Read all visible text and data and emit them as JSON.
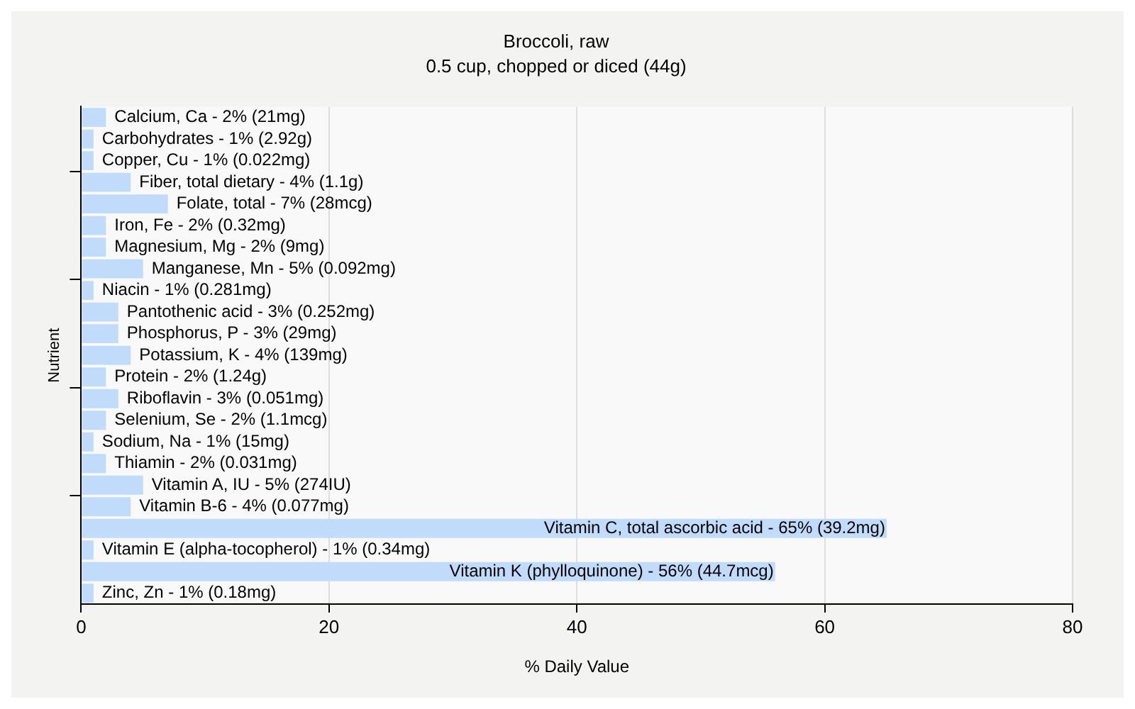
{
  "chart_data": {
    "type": "bar",
    "orientation": "horizontal",
    "title": "Broccoli, raw",
    "subtitle": "0.5 cup, chopped or diced (44g)",
    "xlabel": "% Daily Value",
    "ylabel": "Nutrient",
    "categories": [
      "Calcium, Ca -",
      "Carbohydrates -",
      "Copper, Cu -",
      "Fiber, total dietary -",
      "Folate, total -",
      "Iron, Fe -",
      "Magnesium, Mg -",
      "Manganese, Mn -",
      "Niacin -",
      "Pantothenic acid -",
      "Phosphorus, P -",
      "Potassium, K -",
      "Protein -",
      "Riboflavin -",
      "Selenium, Se -",
      "Sodium, Na -",
      "Thiamin -",
      "Vitamin A, IU -",
      "Vitamin B-6 -",
      "Vitamin C, total ascorbic acid -",
      "Vitamin E (alpha-tocopherol) -",
      "Vitamin K (phylloquinone) -",
      "Zinc, Zn -"
    ],
    "values": [
      2,
      1,
      1,
      4,
      7,
      2,
      2,
      5,
      1,
      3,
      3,
      4,
      2,
      3,
      2,
      1,
      2,
      5,
      4,
      65,
      1,
      56,
      1
    ],
    "value_labels": [
      "2% (21mg)",
      "1% (2.92g)",
      "1% (0.022mg)",
      "4% (1.1g)",
      "7% (28mcg)",
      "2% (0.32mg)",
      "2% (9mg)",
      "5% (0.092mg)",
      "1% (0.281mg)",
      "3% (0.252mg)",
      "3% (29mg)",
      "4% (139mg)",
      "2% (1.24g)",
      "3% (0.051mg)",
      "2% (1.1mcg)",
      "1% (15mg)",
      "2% (0.031mg)",
      "5% (274IU)",
      "4% (0.077mg)",
      "65% (39.2mg)",
      "1% (0.34mg)",
      "56% (44.7mcg)",
      "1% (0.18mg)"
    ],
    "color": "#c0dcfa",
    "xlim": [
      0,
      80
    ],
    "xticks": [
      0,
      20,
      40,
      60,
      80
    ],
    "grid": "x",
    "legend": false,
    "tick_labels": "x"
  }
}
